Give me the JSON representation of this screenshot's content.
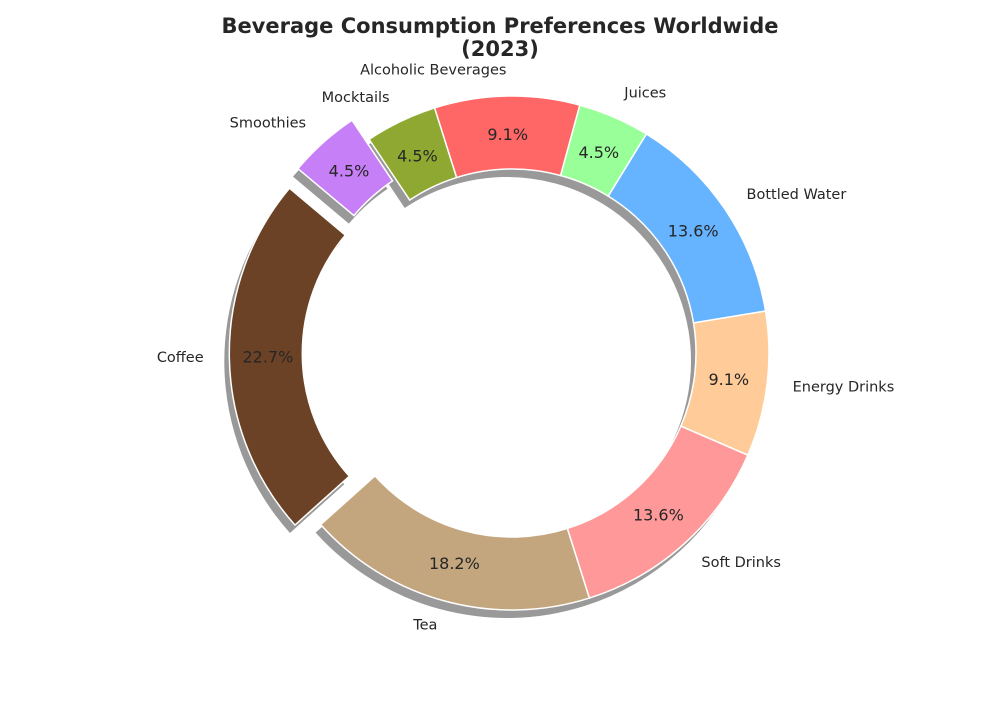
{
  "chart_data": {
    "type": "pie",
    "variant": "donut",
    "title_line1": "Beverage Consumption Preferences Worldwide",
    "title_line2": "(2023)",
    "categories": [
      "Coffee",
      "Tea",
      "Soft Drinks",
      "Energy Drinks",
      "Bottled Water",
      "Juices",
      "Alcoholic Beverages",
      "Mocktails",
      "Smoothies"
    ],
    "values": [
      22.7,
      18.2,
      13.6,
      9.1,
      13.6,
      4.5,
      9.1,
      4.5,
      4.5
    ],
    "value_labels": [
      "22.7%",
      "18.2%",
      "13.6%",
      "9.1%",
      "13.6%",
      "4.5%",
      "9.1%",
      "4.5%",
      "4.5%"
    ],
    "colors": [
      "#6b4226",
      "#c4a67e",
      "#ff9999",
      "#ffcc99",
      "#66b3ff",
      "#99ff99",
      "#ff6666",
      "#8fa832",
      "#c77ff8"
    ],
    "exploded": [
      "Coffee",
      "Smoothies"
    ],
    "shadow": true,
    "legend": "none"
  }
}
